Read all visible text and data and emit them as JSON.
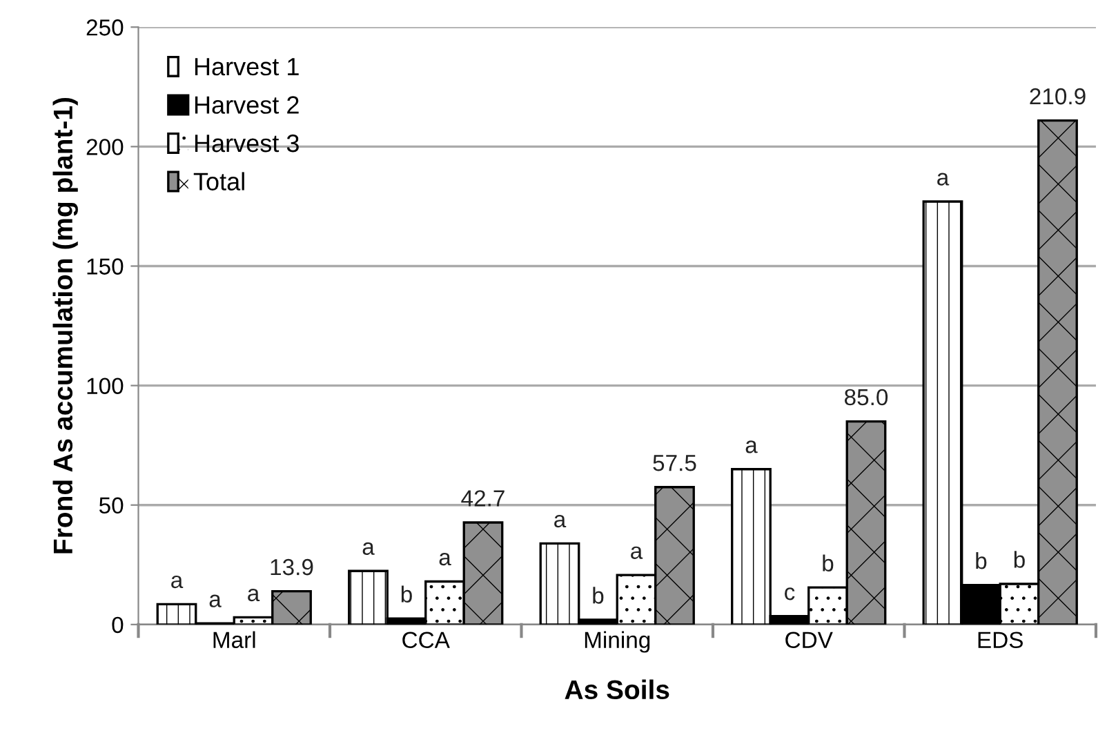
{
  "chart_data": {
    "type": "bar",
    "xlabel": "As Soils",
    "ylabel": "Frond As accumulation (mg plant-1)",
    "categories": [
      "Marl",
      "CCA",
      "Mining",
      "CDV",
      "EDS"
    ],
    "series": [
      {
        "name": "Harvest 1",
        "color": "#ffffff",
        "values": [
          8.5,
          22.4,
          33.9,
          65,
          177
        ],
        "value_labels": [
          "a",
          "a",
          "a",
          "a",
          "a"
        ]
      },
      {
        "name": "Harvest 2",
        "color": "#000000",
        "values": [
          0.5,
          2.5,
          2,
          3.5,
          16.5
        ],
        "value_labels": [
          "a",
          "b",
          "b",
          "c",
          "b"
        ]
      },
      {
        "name": "Harvest 3",
        "color": "#ffffff",
        "values": [
          3,
          18,
          20.7,
          15.5,
          17
        ],
        "value_labels": [
          "a",
          "a",
          "a",
          "b",
          "b"
        ]
      },
      {
        "name": "Total",
        "color": "#909090",
        "values": [
          13.9,
          42.7,
          57.5,
          85.0,
          210.9
        ],
        "value_labels": [
          "13.9",
          "42.7",
          "57.5",
          "85.0",
          "210.9"
        ]
      }
    ],
    "ylim": [
      0,
      250
    ],
    "yticks": [
      0,
      50,
      100,
      150,
      200,
      250
    ],
    "grid": "y",
    "legend": "top left"
  }
}
